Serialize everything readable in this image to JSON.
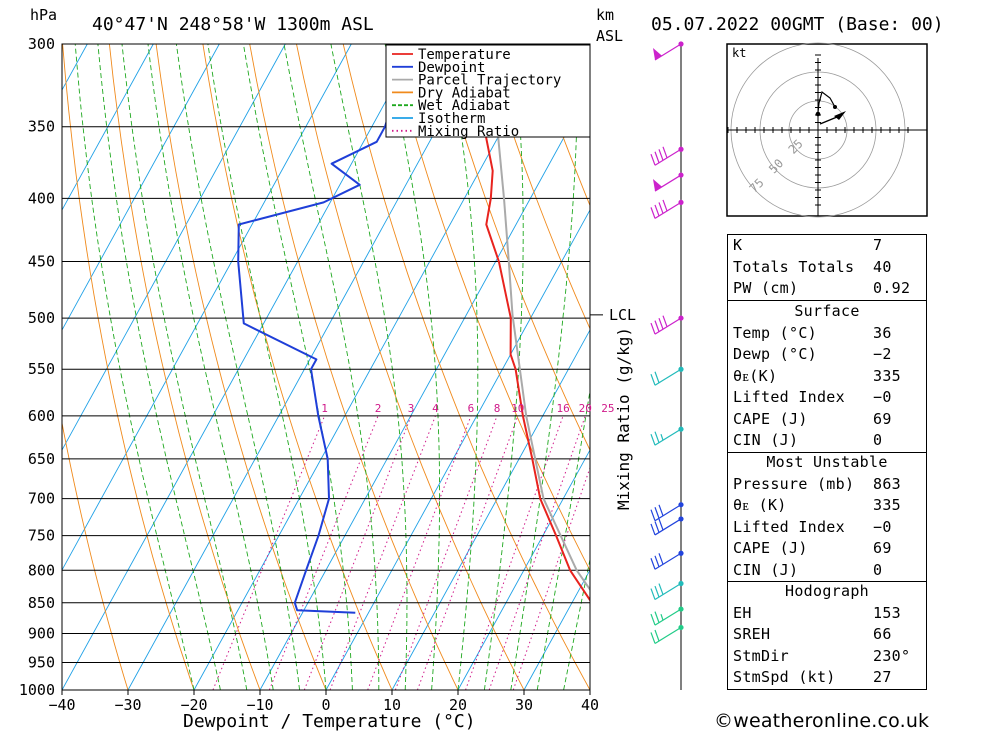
{
  "header": {
    "pressure_unit": "hPa",
    "location": "40°47'N  248°58'W  1300m  ASL",
    "height_unit_line1": "km",
    "height_unit_line2": "ASL",
    "datetime": "05.07.2022  00GMT  (Base: 00)"
  },
  "chart_data": {
    "type": "line",
    "title": "Skew-T log-P sounding",
    "xlabel": "Dewpoint / Temperature (°C)",
    "ylabel": "hPa",
    "y2label": "Mixing Ratio (g/kg)",
    "xlim": [
      -40,
      40
    ],
    "ylim": [
      1000,
      300
    ],
    "x_ticks": [
      -40,
      -30,
      -20,
      -10,
      0,
      10,
      20,
      30,
      40
    ],
    "x_tick_labels": [
      "−40",
      "−30",
      "−20",
      "−10",
      "0",
      "10",
      "20",
      "30",
      "40"
    ],
    "pressure_levels": [
      300,
      350,
      400,
      450,
      500,
      550,
      600,
      650,
      700,
      750,
      800,
      850,
      900,
      950,
      1000
    ],
    "legend": [
      {
        "label": "Temperature",
        "color": "#e8231e",
        "style": "solid"
      },
      {
        "label": "Dewpoint",
        "color": "#1f3fd8",
        "style": "solid"
      },
      {
        "label": "Parcel Trajectory",
        "color": "#aaaaaa",
        "style": "solid"
      },
      {
        "label": "Dry Adiabat",
        "color": "#f08a1c",
        "style": "solid"
      },
      {
        "label": "Wet Adiabat",
        "color": "#1fa81f",
        "style": "dashed"
      },
      {
        "label": "Isotherm",
        "color": "#1ea0e6",
        "style": "solid"
      },
      {
        "label": "Mixing Ratio",
        "color": "#d01a8a",
        "style": "dotted"
      }
    ],
    "mixing_ratio_labels": [
      "1",
      "2",
      "3",
      "4",
      "6",
      "8",
      "10",
      "16",
      "20",
      "25"
    ],
    "mixing_ratio_values": [
      1,
      2,
      3,
      4,
      6,
      8,
      10,
      16,
      20,
      25
    ],
    "lcl_label": "LCL",
    "lcl_pressure": 497,
    "series": [
      {
        "name": "Temperature",
        "points": [
          [
            866,
            36
          ],
          [
            850,
            33
          ],
          [
            800,
            27
          ],
          [
            750,
            22
          ],
          [
            700,
            16.5
          ],
          [
            650,
            12
          ],
          [
            600,
            7
          ],
          [
            550,
            2
          ],
          [
            535,
            0
          ],
          [
            500,
            -3
          ],
          [
            450,
            -9.5
          ],
          [
            420,
            -14.5
          ],
          [
            400,
            -16
          ],
          [
            380,
            -18
          ],
          [
            350,
            -23
          ],
          [
            320,
            -29
          ],
          [
            300,
            -33
          ]
        ]
      },
      {
        "name": "Dewpoint",
        "points": [
          [
            866,
            -2
          ],
          [
            862,
            -11
          ],
          [
            850,
            -12
          ],
          [
            800,
            -13
          ],
          [
            750,
            -14
          ],
          [
            700,
            -15.5
          ],
          [
            650,
            -19
          ],
          [
            600,
            -24
          ],
          [
            550,
            -29
          ],
          [
            540,
            -29
          ],
          [
            505,
            -43
          ],
          [
            450,
            -49
          ],
          [
            420,
            -52
          ],
          [
            403,
            -41
          ],
          [
            390,
            -37
          ],
          [
            375,
            -43
          ],
          [
            360,
            -38
          ],
          [
            350,
            -38
          ],
          [
            300,
            -41
          ]
        ]
      },
      {
        "name": "Parcel Trajectory",
        "points": [
          [
            866,
            36
          ],
          [
            800,
            28
          ],
          [
            700,
            17
          ],
          [
            600,
            7.5
          ],
          [
            497,
            -3
          ],
          [
            450,
            -8
          ],
          [
            400,
            -14
          ],
          [
            350,
            -21
          ],
          [
            300,
            -31.5
          ]
        ]
      }
    ],
    "wind_barbs": [
      {
        "pressure": 300,
        "color": "#cc22cc",
        "speed_kt": 50
      },
      {
        "pressure": 365,
        "color": "#cc22cc",
        "speed_kt": 40
      },
      {
        "pressure": 383,
        "color": "#cc22cc",
        "speed_kt": 50
      },
      {
        "pressure": 403,
        "color": "#cc22cc",
        "speed_kt": 40
      },
      {
        "pressure": 500,
        "color": "#cc22cc",
        "speed_kt": 40
      },
      {
        "pressure": 550,
        "color": "#22bbbb",
        "speed_kt": 20
      },
      {
        "pressure": 615,
        "color": "#22bbbb",
        "speed_kt": 25
      },
      {
        "pressure": 708,
        "color": "#2244dd",
        "speed_kt": 30
      },
      {
        "pressure": 727,
        "color": "#2244dd",
        "speed_kt": 30
      },
      {
        "pressure": 775,
        "color": "#2244dd",
        "speed_kt": 30
      },
      {
        "pressure": 820,
        "color": "#22bbbb",
        "speed_kt": 30
      },
      {
        "pressure": 860,
        "color": "#22cc88",
        "speed_kt": 25
      },
      {
        "pressure": 890,
        "color": "#22cc88",
        "speed_kt": 20
      }
    ]
  },
  "hodograph": {
    "unit_label": "kt",
    "ring_labels": [
      "25",
      "50",
      "75"
    ]
  },
  "indices": {
    "general": [
      {
        "key": "K",
        "value": "7"
      },
      {
        "key": "Totals Totals",
        "value": "40"
      },
      {
        "key": "PW (cm)",
        "value": "0.92"
      }
    ],
    "surface": {
      "title": "Surface",
      "rows": [
        {
          "key": "Temp (°C)",
          "value": "36"
        },
        {
          "key": "Dewp (°C)",
          "value": "−2"
        },
        {
          "key": "θᴇ(K)",
          "value": "335"
        },
        {
          "key": "Lifted Index",
          "value": "−0"
        },
        {
          "key": "CAPE (J)",
          "value": "69"
        },
        {
          "key": "CIN (J)",
          "value": "0"
        }
      ]
    },
    "most_unstable": {
      "title": "Most Unstable",
      "rows": [
        {
          "key": "Pressure (mb)",
          "value": "863"
        },
        {
          "key": "θᴇ (K)",
          "value": "335"
        },
        {
          "key": "Lifted Index",
          "value": "−0"
        },
        {
          "key": "CAPE (J)",
          "value": "69"
        },
        {
          "key": "CIN (J)",
          "value": "0"
        }
      ]
    },
    "hodograph": {
      "title": "Hodograph",
      "rows": [
        {
          "key": "EH",
          "value": "153"
        },
        {
          "key": "SREH",
          "value": "66"
        },
        {
          "key": "StmDir",
          "value": "230°"
        },
        {
          "key": "StmSpd (kt)",
          "value": "27"
        }
      ]
    }
  },
  "footer": {
    "credit": "©weatheronline.co.uk"
  }
}
